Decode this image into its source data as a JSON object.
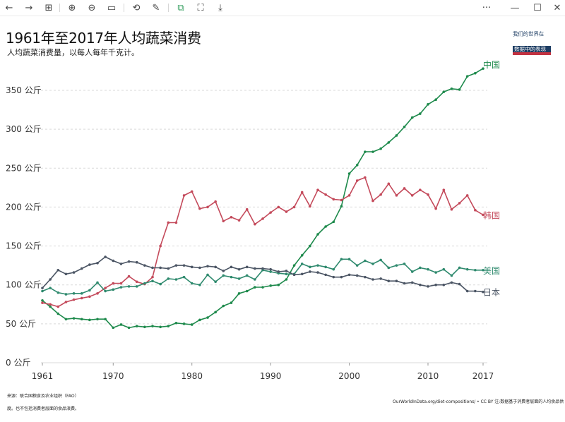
{
  "toolbar": {
    "buttons": [
      {
        "icon": "back-arrow-icon",
        "glyph": "←"
      },
      {
        "icon": "forward-arrow-icon",
        "glyph": "→"
      },
      {
        "icon": "grid-view-icon",
        "glyph": "⊞"
      },
      {
        "icon": "zoom-in-icon",
        "glyph": "⊕"
      },
      {
        "icon": "zoom-out-icon",
        "glyph": "⊖"
      },
      {
        "icon": "fit-screen-icon",
        "glyph": "▭"
      },
      {
        "icon": "rotate-icon",
        "glyph": "⟲"
      },
      {
        "icon": "edit-icon",
        "glyph": "✎"
      },
      {
        "icon": "translate-icon",
        "glyph": "⧉"
      },
      {
        "icon": "scan-icon",
        "glyph": "⛶"
      },
      {
        "icon": "save-icon",
        "glyph": "⤓"
      },
      {
        "icon": "more-icon",
        "glyph": "···"
      },
      {
        "icon": "minimize-icon",
        "glyph": "—"
      },
      {
        "icon": "maximize-icon",
        "glyph": "☐"
      },
      {
        "icon": "close-icon",
        "glyph": "✕"
      }
    ]
  },
  "logo": {
    "line1": "我们的世界在",
    "line2": "数据中的表现"
  },
  "footer": {
    "source": "来源：联合国粮食及农业组织（FAO）",
    "note": "度。也不包括消费者层面的食品浪费。",
    "credit": "OurWorldInData.org/diet-compositions/ • CC BY 注:数据基于消费者层面的人均食品供"
  },
  "colors": {
    "china": "#1e8a4c",
    "korea": "#c44a5b",
    "usa": "#2f8a6e",
    "japan": "#4b5564",
    "grid": "#d9d9d9",
    "axis_text": "#333333"
  },
  "chart_data": {
    "type": "line",
    "title": "1961年至2017年人均蔬菜消费",
    "subtitle": "人均蔬菜消费量，以每人每年千克计。",
    "xlabel": "",
    "ylabel": "",
    "xlim": [
      1961,
      2017
    ],
    "ylim": [
      0,
      375
    ],
    "y_ticks": [
      0,
      50,
      100,
      150,
      200,
      250,
      300,
      350
    ],
    "y_tick_labels": [
      "0 公斤",
      "50 公斤",
      "100 公斤",
      "150 公斤",
      "200 公斤",
      "250 公斤",
      "300 公斤",
      "350 公斤"
    ],
    "x_ticks": [
      1961,
      1970,
      1980,
      1990,
      2000,
      2010,
      2017
    ],
    "x_tick_labels": [
      "1961",
      "1970",
      "1980",
      "1990",
      "2000",
      "2010",
      "2017"
    ],
    "grid": "horizontal dashed",
    "legend": "inline labels at line ends",
    "x": [
      1961,
      1962,
      1963,
      1964,
      1965,
      1966,
      1967,
      1968,
      1969,
      1970,
      1971,
      1972,
      1973,
      1974,
      1975,
      1976,
      1977,
      1978,
      1979,
      1980,
      1981,
      1982,
      1983,
      1984,
      1985,
      1986,
      1987,
      1988,
      1989,
      1990,
      1991,
      1992,
      1993,
      1994,
      1995,
      1996,
      1997,
      1998,
      1999,
      2000,
      2001,
      2002,
      2003,
      2004,
      2005,
      2006,
      2007,
      2008,
      2009,
      2010,
      2011,
      2012,
      2013,
      2014,
      2015,
      2016,
      2017
    ],
    "series": [
      {
        "name": "中国",
        "color_key": "china",
        "values": [
          80,
          72,
          63,
          56,
          57,
          56,
          55,
          56,
          56,
          45,
          49,
          45,
          47,
          46,
          47,
          46,
          47,
          51,
          50,
          49,
          55,
          58,
          65,
          73,
          77,
          89,
          92,
          97,
          97,
          99,
          100,
          107,
          125,
          138,
          150,
          165,
          175,
          181,
          201,
          243,
          254,
          271,
          271,
          275,
          283,
          292,
          303,
          315,
          320,
          332,
          338,
          348,
          352,
          351,
          368,
          372,
          378
        ]
      },
      {
        "name": "韩国",
        "color_key": "korea",
        "values": [
          77,
          75,
          72,
          78,
          81,
          83,
          85,
          89,
          96,
          102,
          102,
          111,
          104,
          101,
          110,
          150,
          180,
          180,
          215,
          220,
          198,
          200,
          207,
          182,
          187,
          183,
          197,
          178,
          185,
          193,
          200,
          194,
          200,
          219,
          201,
          222,
          216,
          210,
          209,
          215,
          234,
          238,
          208,
          216,
          230,
          215,
          224,
          215,
          222,
          216,
          198,
          222,
          197,
          205,
          215,
          196,
          190
        ]
      },
      {
        "name": "美国",
        "color_key": "usa",
        "values": [
          92,
          96,
          90,
          88,
          89,
          89,
          93,
          103,
          92,
          94,
          97,
          98,
          98,
          102,
          105,
          101,
          108,
          107,
          110,
          102,
          100,
          113,
          104,
          112,
          110,
          108,
          112,
          107,
          119,
          117,
          115,
          114,
          114,
          127,
          123,
          125,
          123,
          120,
          133,
          133,
          125,
          131,
          127,
          132,
          122,
          125,
          127,
          117,
          122,
          120,
          116,
          120,
          112,
          122,
          120,
          119,
          119
        ]
      },
      {
        "name": "日本",
        "color_key": "japan",
        "values": [
          96,
          107,
          119,
          114,
          116,
          121,
          126,
          128,
          136,
          131,
          127,
          130,
          129,
          125,
          122,
          122,
          121,
          125,
          125,
          123,
          122,
          124,
          123,
          118,
          123,
          120,
          123,
          121,
          121,
          120,
          117,
          118,
          113,
          114,
          117,
          116,
          113,
          110,
          110,
          113,
          112,
          110,
          107,
          108,
          105,
          105,
          102,
          103,
          100,
          98,
          100,
          100,
          103,
          101,
          92,
          92,
          91
        ]
      }
    ]
  }
}
